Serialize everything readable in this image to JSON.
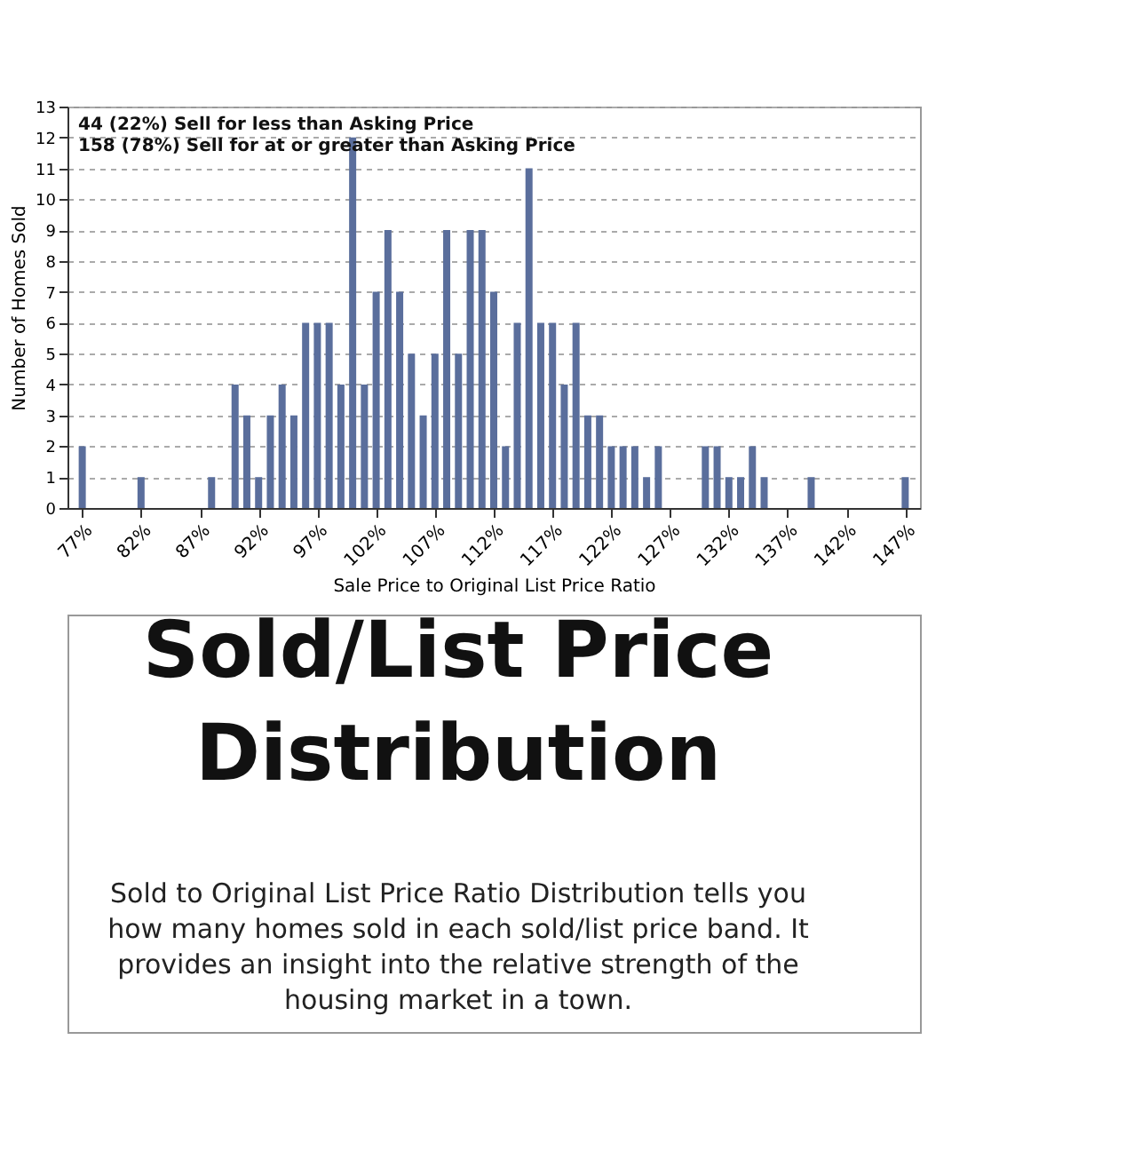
{
  "chart_data": {
    "type": "bar",
    "title": "Sold/List Price Distribution",
    "xlabel": "Sale Price to Original List Price Ratio",
    "ylabel": "Number of Homes Sold",
    "x": [
      77,
      82,
      88,
      90,
      91,
      92,
      93,
      94,
      95,
      96,
      97,
      98,
      99,
      100,
      101,
      102,
      103,
      104,
      105,
      106,
      107,
      108,
      109,
      110,
      111,
      112,
      113,
      114,
      115,
      116,
      117,
      118,
      119,
      120,
      121,
      122,
      123,
      124,
      125,
      126,
      130,
      131,
      132,
      133,
      134,
      135,
      139,
      147
    ],
    "values": [
      2,
      1,
      1,
      4,
      3,
      1,
      3,
      4,
      3,
      6,
      6,
      6,
      4,
      12,
      4,
      7,
      9,
      7,
      5,
      3,
      5,
      9,
      5,
      9,
      9,
      7,
      2,
      6,
      11,
      6,
      6,
      4,
      6,
      3,
      3,
      2,
      2,
      2,
      1,
      2,
      2,
      2,
      1,
      1,
      2,
      1,
      1,
      1
    ],
    "color": "#5a6e9c",
    "xlim": [
      76.5,
      147.5
    ],
    "xticks": [
      {
        "value": 77,
        "label": "77%"
      },
      {
        "value": 82,
        "label": "82%"
      },
      {
        "value": 87,
        "label": "87%"
      },
      {
        "value": 92,
        "label": "92%"
      },
      {
        "value": 97,
        "label": "97%"
      },
      {
        "value": 102,
        "label": "102%"
      },
      {
        "value": 107,
        "label": "107%"
      },
      {
        "value": 112,
        "label": "112%"
      },
      {
        "value": 117,
        "label": "117%"
      },
      {
        "value": 122,
        "label": "122%"
      },
      {
        "value": 127,
        "label": "127%"
      },
      {
        "value": 132,
        "label": "132%"
      },
      {
        "value": 137,
        "label": "137%"
      },
      {
        "value": 142,
        "label": "142%"
      },
      {
        "value": 147,
        "label": "147%"
      }
    ],
    "ylim": [
      0,
      13
    ],
    "yticks": [
      0,
      1,
      2,
      3,
      4,
      5,
      6,
      7,
      8,
      9,
      10,
      11,
      12,
      13
    ],
    "grid": "y",
    "annotations": [
      "44 (22%) Sell for less than Asking Price",
      "158 (78%) Sell for at or greater than Asking Price",
      "Sold to Original List Price Ratio Distribution tells you how many homes sold in each sold/list price band. It provides an insight into the relative strength of the housing market in a town."
    ]
  }
}
